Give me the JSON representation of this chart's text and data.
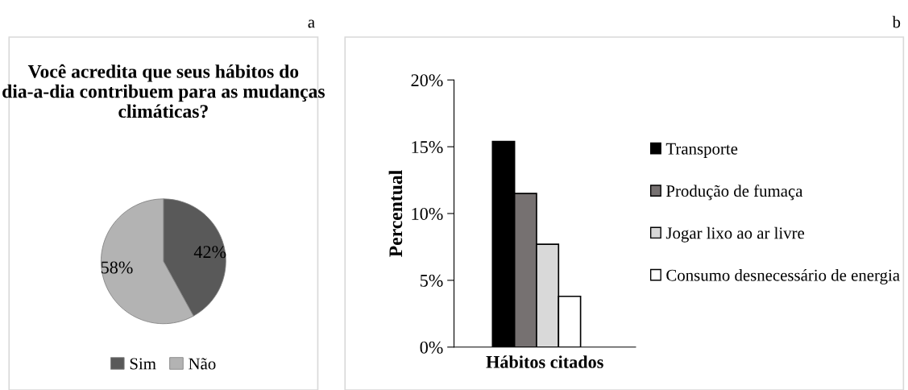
{
  "chart_data": [
    {
      "type": "pie",
      "title": "Você acredita que seus hábitos do dia-a-dia contribuem para as mudanças climáticas?",
      "categories": [
        "Sim",
        "Não"
      ],
      "values": [
        42,
        58
      ],
      "colors": [
        "#595959",
        "#b3b3b3"
      ],
      "value_labels": [
        "42%",
        "58%"
      ],
      "legend": "bottom",
      "annotations": [
        "a"
      ]
    },
    {
      "type": "bar",
      "categories": [
        null
      ],
      "xlabel": "Hábitos citados",
      "ylabel": "Percentual",
      "ylim": [
        0,
        20
      ],
      "yticks": [
        {
          "value": 0,
          "label": "0%"
        },
        {
          "value": 5,
          "label": "5%"
        },
        {
          "value": 10,
          "label": "10%"
        },
        {
          "value": 15,
          "label": "15%"
        },
        {
          "value": 20,
          "label": "20%"
        }
      ],
      "grid": false,
      "legend": "right",
      "annotations": [
        "b"
      ],
      "series": [
        {
          "name": "Transporte",
          "color": "#000000",
          "values": [
            15.4
          ]
        },
        {
          "name": "Produção de fumaça",
          "color": "#767171",
          "values": [
            11.5
          ]
        },
        {
          "name": "Jogar lixo ao ar livre",
          "color": "#d9d9d9",
          "values": [
            7.7
          ]
        },
        {
          "name": "Consumo desnecessário de energia",
          "color": "#ffffff",
          "values": [
            3.8
          ]
        }
      ]
    }
  ]
}
